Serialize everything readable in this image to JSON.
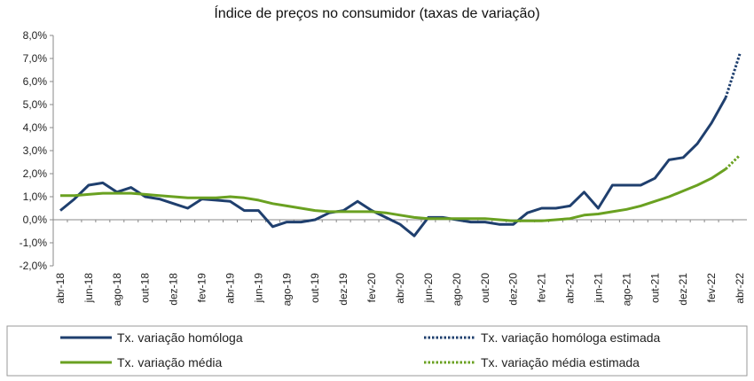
{
  "chart_data": {
    "type": "line",
    "title": "Índice de preços no consumidor  (taxas  de variação)",
    "xlabel": "",
    "ylabel": "",
    "ylim": [
      -2.0,
      8.0
    ],
    "y_ticks": [
      "8,0%",
      "7,0%",
      "6,0%",
      "5,0%",
      "4,0%",
      "3,0%",
      "2,0%",
      "1,0%",
      "0,0%",
      "-1,0%",
      "-2,0%"
    ],
    "y_tick_values": [
      8,
      7,
      6,
      5,
      4,
      3,
      2,
      1,
      0,
      -1,
      -2
    ],
    "x": [
      "abr-18",
      "mai-18",
      "jun-18",
      "jul-18",
      "ago-18",
      "set-18",
      "out-18",
      "nov-18",
      "dez-18",
      "jan-19",
      "fev-19",
      "mar-19",
      "abr-19",
      "mai-19",
      "jun-19",
      "jul-19",
      "ago-19",
      "set-19",
      "out-19",
      "nov-19",
      "dez-19",
      "jan-20",
      "fev-20",
      "mar-20",
      "abr-20",
      "mai-20",
      "jun-20",
      "jul-20",
      "ago-20",
      "set-20",
      "out-20",
      "nov-20",
      "dez-20",
      "jan-21",
      "fev-21",
      "mar-21",
      "abr-21",
      "mai-21",
      "jun-21",
      "jul-21",
      "ago-21",
      "set-21",
      "out-21",
      "nov-21",
      "dez-21",
      "jan-22",
      "fev-22",
      "mar-22",
      "abr-22"
    ],
    "x_tick_labels": [
      "abr-18",
      "jun-18",
      "ago-18",
      "out-18",
      "dez-18",
      "fev-19",
      "abr-19",
      "jun-19",
      "ago-19",
      "out-19",
      "dez-19",
      "fev-20",
      "abr-20",
      "jun-20",
      "ago-20",
      "out-20",
      "dez-20",
      "fev-21",
      "abr-21",
      "jun-21",
      "ago-21",
      "out-21",
      "dez-21",
      "fev-22",
      "abr-22"
    ],
    "grid": false,
    "legend_position": "bottom",
    "series": [
      {
        "name": "Tx. variação homóloga",
        "color": "#1f3f6e",
        "style": "solid",
        "values": [
          0.4,
          0.9,
          1.5,
          1.6,
          1.2,
          1.4,
          1.0,
          0.9,
          0.7,
          0.5,
          0.9,
          0.85,
          0.8,
          0.4,
          0.4,
          -0.3,
          -0.1,
          -0.1,
          0.0,
          0.3,
          0.4,
          0.8,
          0.4,
          0.1,
          -0.2,
          -0.7,
          0.1,
          0.1,
          0.0,
          -0.1,
          -0.1,
          -0.2,
          -0.2,
          0.3,
          0.5,
          0.5,
          0.6,
          1.2,
          0.5,
          1.5,
          1.5,
          1.5,
          1.8,
          2.6,
          2.7,
          3.3,
          4.2,
          5.3,
          null
        ]
      },
      {
        "name": "Tx. variação homóloga estimada",
        "color": "#1f3f6e",
        "style": "dotted",
        "values": [
          null,
          null,
          null,
          null,
          null,
          null,
          null,
          null,
          null,
          null,
          null,
          null,
          null,
          null,
          null,
          null,
          null,
          null,
          null,
          null,
          null,
          null,
          null,
          null,
          null,
          null,
          null,
          null,
          null,
          null,
          null,
          null,
          null,
          null,
          null,
          null,
          null,
          null,
          null,
          null,
          null,
          null,
          null,
          null,
          null,
          null,
          null,
          5.3,
          7.2
        ]
      },
      {
        "name": "Tx. variação média",
        "color": "#6aa121",
        "style": "solid",
        "values": [
          1.05,
          1.05,
          1.1,
          1.15,
          1.15,
          1.15,
          1.1,
          1.05,
          1.0,
          0.95,
          0.95,
          0.95,
          1.0,
          0.95,
          0.85,
          0.7,
          0.6,
          0.5,
          0.4,
          0.35,
          0.35,
          0.35,
          0.35,
          0.3,
          0.2,
          0.1,
          0.05,
          0.05,
          0.05,
          0.05,
          0.05,
          0.0,
          -0.05,
          -0.05,
          -0.05,
          0.0,
          0.05,
          0.2,
          0.25,
          0.35,
          0.45,
          0.6,
          0.8,
          1.0,
          1.25,
          1.5,
          1.8,
          2.2,
          null
        ]
      },
      {
        "name": "Tx. variação média  estimada",
        "color": "#6aa121",
        "style": "dotted",
        "values": [
          null,
          null,
          null,
          null,
          null,
          null,
          null,
          null,
          null,
          null,
          null,
          null,
          null,
          null,
          null,
          null,
          null,
          null,
          null,
          null,
          null,
          null,
          null,
          null,
          null,
          null,
          null,
          null,
          null,
          null,
          null,
          null,
          null,
          null,
          null,
          null,
          null,
          null,
          null,
          null,
          null,
          null,
          null,
          null,
          null,
          null,
          null,
          2.2,
          2.8
        ]
      }
    ]
  },
  "legend": {
    "items": [
      {
        "label": "Tx. variação homóloga",
        "color": "#1f3f6e",
        "style": "solid"
      },
      {
        "label": "Tx. variação homóloga estimada",
        "color": "#1f3f6e",
        "style": "dotted"
      },
      {
        "label": "Tx. variação média",
        "color": "#6aa121",
        "style": "solid"
      },
      {
        "label": "Tx. variação média  estimada",
        "color": "#6aa121",
        "style": "dotted"
      }
    ]
  }
}
